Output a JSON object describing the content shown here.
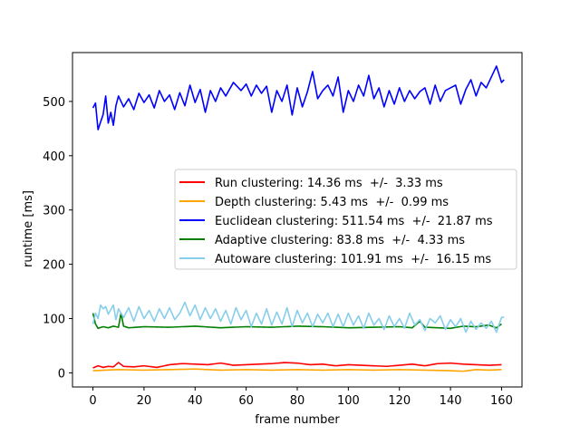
{
  "chart_data": {
    "type": "line",
    "title": "",
    "xlabel": "frame number",
    "ylabel": "runtime [ms]",
    "xlim": [
      -8,
      168
    ],
    "ylim": [
      -26,
      590
    ],
    "xticks": [
      0,
      20,
      40,
      60,
      80,
      100,
      120,
      140,
      160
    ],
    "yticks": [
      0,
      100,
      200,
      300,
      400,
      500
    ],
    "grid": false,
    "legend_position": "center-right",
    "series": [
      {
        "name": "Run clustering",
        "legend_label": "Run clustering: 14.36 ms  +/-  3.33 ms",
        "color": "#ff0000",
        "keyframes": [
          [
            0,
            9
          ],
          [
            2,
            13
          ],
          [
            4,
            10
          ],
          [
            6,
            12
          ],
          [
            8,
            11
          ],
          [
            10,
            19
          ],
          [
            12,
            12
          ],
          [
            16,
            11
          ],
          [
            20,
            13
          ],
          [
            25,
            10
          ],
          [
            30,
            15
          ],
          [
            35,
            17
          ],
          [
            40,
            16
          ],
          [
            45,
            15
          ],
          [
            50,
            18
          ],
          [
            55,
            14
          ],
          [
            60,
            15
          ],
          [
            65,
            16
          ],
          [
            70,
            17
          ],
          [
            75,
            19
          ],
          [
            80,
            18
          ],
          [
            85,
            15
          ],
          [
            90,
            16
          ],
          [
            95,
            13
          ],
          [
            100,
            15
          ],
          [
            105,
            14
          ],
          [
            110,
            13
          ],
          [
            115,
            12
          ],
          [
            120,
            14
          ],
          [
            125,
            16
          ],
          [
            130,
            13
          ],
          [
            135,
            17
          ],
          [
            140,
            18
          ],
          [
            145,
            16
          ],
          [
            150,
            15
          ],
          [
            155,
            14
          ],
          [
            160,
            15
          ]
        ]
      },
      {
        "name": "Depth clustering",
        "legend_label": "Depth clustering: 5.43 ms  +/-  0.99 ms",
        "color": "#ffa500",
        "keyframes": [
          [
            0,
            4
          ],
          [
            10,
            6
          ],
          [
            20,
            5
          ],
          [
            30,
            6
          ],
          [
            40,
            7
          ],
          [
            50,
            5
          ],
          [
            60,
            6
          ],
          [
            70,
            5
          ],
          [
            80,
            6
          ],
          [
            90,
            5
          ],
          [
            100,
            6
          ],
          [
            110,
            5
          ],
          [
            120,
            6
          ],
          [
            130,
            5
          ],
          [
            140,
            4
          ],
          [
            145,
            3
          ],
          [
            150,
            6
          ],
          [
            155,
            5
          ],
          [
            160,
            6
          ]
        ]
      },
      {
        "name": "Euclidean clustering",
        "legend_label": "Euclidean clustering: 511.54 ms  +/-  21.87 ms",
        "color": "#0000ff",
        "keyframes": [
          [
            0,
            488
          ],
          [
            1,
            497
          ],
          [
            2,
            448
          ],
          [
            3,
            462
          ],
          [
            4,
            476
          ],
          [
            5,
            510
          ],
          [
            6,
            460
          ],
          [
            7,
            480
          ],
          [
            8,
            456
          ],
          [
            9,
            492
          ],
          [
            10,
            510
          ],
          [
            12,
            490
          ],
          [
            14,
            505
          ],
          [
            16,
            485
          ],
          [
            18,
            515
          ],
          [
            20,
            498
          ],
          [
            22,
            512
          ],
          [
            24,
            488
          ],
          [
            26,
            520
          ],
          [
            28,
            500
          ],
          [
            30,
            512
          ],
          [
            32,
            485
          ],
          [
            34,
            516
          ],
          [
            36,
            492
          ],
          [
            38,
            530
          ],
          [
            40,
            498
          ],
          [
            42,
            522
          ],
          [
            44,
            480
          ],
          [
            46,
            520
          ],
          [
            48,
            500
          ],
          [
            50,
            525
          ],
          [
            52,
            510
          ],
          [
            55,
            535
          ],
          [
            58,
            520
          ],
          [
            60,
            532
          ],
          [
            62,
            510
          ],
          [
            64,
            530
          ],
          [
            66,
            515
          ],
          [
            68,
            528
          ],
          [
            70,
            480
          ],
          [
            72,
            520
          ],
          [
            74,
            500
          ],
          [
            76,
            530
          ],
          [
            78,
            475
          ],
          [
            80,
            525
          ],
          [
            82,
            490
          ],
          [
            84,
            518
          ],
          [
            86,
            555
          ],
          [
            88,
            505
          ],
          [
            90,
            520
          ],
          [
            92,
            530
          ],
          [
            94,
            510
          ],
          [
            96,
            545
          ],
          [
            98,
            480
          ],
          [
            100,
            520
          ],
          [
            102,
            500
          ],
          [
            104,
            530
          ],
          [
            106,
            510
          ],
          [
            108,
            548
          ],
          [
            110,
            505
          ],
          [
            112,
            525
          ],
          [
            114,
            490
          ],
          [
            116,
            520
          ],
          [
            118,
            495
          ],
          [
            120,
            525
          ],
          [
            122,
            500
          ],
          [
            124,
            520
          ],
          [
            126,
            505
          ],
          [
            128,
            518
          ],
          [
            130,
            525
          ],
          [
            132,
            495
          ],
          [
            134,
            530
          ],
          [
            136,
            500
          ],
          [
            138,
            520
          ],
          [
            140,
            525
          ],
          [
            142,
            530
          ],
          [
            144,
            495
          ],
          [
            146,
            522
          ],
          [
            148,
            540
          ],
          [
            150,
            510
          ],
          [
            152,
            535
          ],
          [
            154,
            525
          ],
          [
            156,
            545
          ],
          [
            158,
            565
          ],
          [
            160,
            535
          ],
          [
            161,
            540
          ]
        ]
      },
      {
        "name": "Adaptive clustering",
        "legend_label": "Adaptive clustering: 83.8 ms  +/-  4.33 ms",
        "color": "#008000",
        "keyframes": [
          [
            0,
            110
          ],
          [
            1,
            90
          ],
          [
            2,
            82
          ],
          [
            4,
            85
          ],
          [
            6,
            83
          ],
          [
            8,
            86
          ],
          [
            10,
            84
          ],
          [
            11,
            110
          ],
          [
            12,
            86
          ],
          [
            14,
            83
          ],
          [
            20,
            85
          ],
          [
            30,
            84
          ],
          [
            40,
            86
          ],
          [
            50,
            83
          ],
          [
            60,
            85
          ],
          [
            70,
            84
          ],
          [
            80,
            86
          ],
          [
            90,
            85
          ],
          [
            100,
            83
          ],
          [
            110,
            84
          ],
          [
            120,
            85
          ],
          [
            125,
            83
          ],
          [
            128,
            95
          ],
          [
            130,
            84
          ],
          [
            140,
            82
          ],
          [
            145,
            86
          ],
          [
            150,
            85
          ],
          [
            155,
            88
          ],
          [
            158,
            83
          ],
          [
            160,
            90
          ]
        ]
      },
      {
        "name": "Autoware clustering",
        "legend_label": "Autoware clustering: 101.91 ms  +/-  16.15 ms",
        "color": "#87ceeb",
        "keyframes": [
          [
            0,
            90
          ],
          [
            1,
            110
          ],
          [
            2,
            100
          ],
          [
            3,
            125
          ],
          [
            4,
            118
          ],
          [
            5,
            122
          ],
          [
            6,
            108
          ],
          [
            8,
            125
          ],
          [
            9,
            98
          ],
          [
            10,
            118
          ],
          [
            12,
            102
          ],
          [
            14,
            120
          ],
          [
            16,
            95
          ],
          [
            18,
            122
          ],
          [
            20,
            100
          ],
          [
            22,
            115
          ],
          [
            24,
            95
          ],
          [
            26,
            118
          ],
          [
            28,
            100
          ],
          [
            30,
            120
          ],
          [
            32,
            98
          ],
          [
            34,
            110
          ],
          [
            36,
            130
          ],
          [
            38,
            105
          ],
          [
            40,
            125
          ],
          [
            42,
            98
          ],
          [
            44,
            120
          ],
          [
            46,
            100
          ],
          [
            48,
            118
          ],
          [
            50,
            95
          ],
          [
            52,
            115
          ],
          [
            54,
            90
          ],
          [
            56,
            120
          ],
          [
            58,
            98
          ],
          [
            60,
            115
          ],
          [
            62,
            85
          ],
          [
            64,
            110
          ],
          [
            66,
            90
          ],
          [
            68,
            118
          ],
          [
            70,
            88
          ],
          [
            72,
            112
          ],
          [
            74,
            90
          ],
          [
            76,
            120
          ],
          [
            78,
            85
          ],
          [
            80,
            115
          ],
          [
            82,
            92
          ],
          [
            84,
            110
          ],
          [
            86,
            85
          ],
          [
            88,
            108
          ],
          [
            90,
            92
          ],
          [
            92,
            110
          ],
          [
            94,
            85
          ],
          [
            96,
            108
          ],
          [
            98,
            85
          ],
          [
            100,
            110
          ],
          [
            102,
            88
          ],
          [
            104,
            105
          ],
          [
            106,
            82
          ],
          [
            108,
            110
          ],
          [
            110,
            88
          ],
          [
            112,
            100
          ],
          [
            114,
            80
          ],
          [
            116,
            105
          ],
          [
            118,
            85
          ],
          [
            120,
            100
          ],
          [
            122,
            82
          ],
          [
            124,
            110
          ],
          [
            126,
            88
          ],
          [
            128,
            98
          ],
          [
            130,
            78
          ],
          [
            132,
            100
          ],
          [
            134,
            92
          ],
          [
            136,
            105
          ],
          [
            138,
            80
          ],
          [
            140,
            98
          ],
          [
            142,
            85
          ],
          [
            144,
            100
          ],
          [
            146,
            75
          ],
          [
            148,
            95
          ],
          [
            150,
            80
          ],
          [
            152,
            92
          ],
          [
            154,
            82
          ],
          [
            156,
            95
          ],
          [
            158,
            75
          ],
          [
            160,
            102
          ],
          [
            161,
            103
          ]
        ]
      }
    ]
  }
}
